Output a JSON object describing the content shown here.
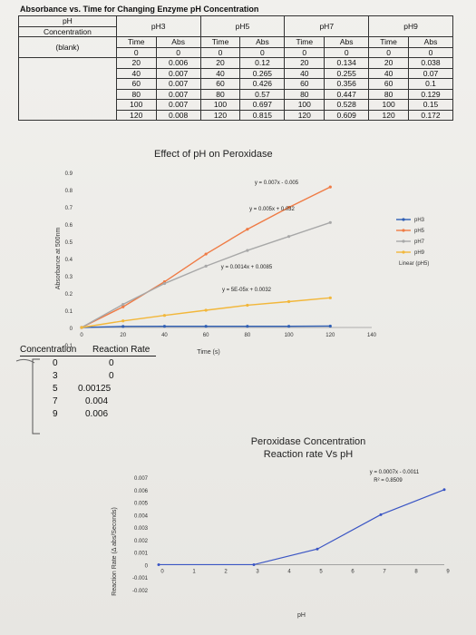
{
  "table": {
    "title": "Absorbance vs. Time for Changing Enzyme pH Concentration",
    "ph_label": "pH",
    "concentration_label": "Concentration",
    "blank_label": "(blank)",
    "groups": [
      {
        "name": "pH3",
        "time_label": "Time",
        "abs_label": "Abs",
        "rows": [
          [
            "0",
            "0"
          ],
          [
            "20",
            "0.006"
          ],
          [
            "40",
            "0.007"
          ],
          [
            "60",
            "0.007"
          ],
          [
            "80",
            "0.007"
          ],
          [
            "100",
            "0.007"
          ],
          [
            "120",
            "0.008"
          ]
        ]
      },
      {
        "name": "pH5",
        "time_label": "Time",
        "abs_label": "Abs",
        "rows": [
          [
            "0",
            "0"
          ],
          [
            "20",
            "0.12"
          ],
          [
            "40",
            "0.265"
          ],
          [
            "60",
            "0.426"
          ],
          [
            "80",
            "0.57"
          ],
          [
            "100",
            "0.697"
          ],
          [
            "120",
            "0.815"
          ]
        ]
      },
      {
        "name": "pH7",
        "time_label": "Time",
        "abs_label": "Abs",
        "rows": [
          [
            "0",
            "0"
          ],
          [
            "20",
            "0.134"
          ],
          [
            "40",
            "0.255"
          ],
          [
            "60",
            "0.356"
          ],
          [
            "80",
            "0.447"
          ],
          [
            "100",
            "0.528"
          ],
          [
            "120",
            "0.609"
          ]
        ]
      },
      {
        "name": "pH9",
        "time_label": "Time",
        "abs_label": "Abs",
        "rows": [
          [
            "0",
            "0"
          ],
          [
            "20",
            "0.038"
          ],
          [
            "40",
            "0.07"
          ],
          [
            "60",
            "0.1"
          ],
          [
            "80",
            "0.129"
          ],
          [
            "100",
            "0.15"
          ],
          [
            "120",
            "0.172"
          ]
        ]
      }
    ]
  },
  "chart_data": [
    {
      "type": "line",
      "title": "Effect of pH on Peroxidase",
      "xlabel": "Time (s)",
      "ylabel": "Absorbance at 500nm",
      "xlim": [
        0,
        140
      ],
      "ylim": [
        -0.1,
        0.9
      ],
      "x_ticks": [
        "0",
        "20",
        "40",
        "60",
        "80",
        "100",
        "120",
        "140"
      ],
      "y_ticks": [
        "-0.1",
        "0",
        "0.1",
        "0.2",
        "0.3",
        "0.4",
        "0.5",
        "0.6",
        "0.7",
        "0.8",
        "0.9"
      ],
      "series": [
        {
          "name": "pH3",
          "color": "#2f5fb5",
          "x": [
            0,
            20,
            40,
            60,
            80,
            100,
            120
          ],
          "y": [
            0,
            0.006,
            0.007,
            0.007,
            0.007,
            0.007,
            0.008
          ]
        },
        {
          "name": "pH5",
          "color": "#ef7b45",
          "x": [
            0,
            20,
            40,
            60,
            80,
            100,
            120
          ],
          "y": [
            0,
            0.12,
            0.265,
            0.426,
            0.57,
            0.697,
            0.815
          ]
        },
        {
          "name": "pH7",
          "color": "#a8a8a8",
          "x": [
            0,
            20,
            40,
            60,
            80,
            100,
            120
          ],
          "y": [
            0,
            0.134,
            0.255,
            0.356,
            0.447,
            0.528,
            0.609
          ]
        },
        {
          "name": "pH9",
          "color": "#f2b73a",
          "x": [
            0,
            20,
            40,
            60,
            80,
            100,
            120
          ],
          "y": [
            0,
            0.038,
            0.07,
            0.1,
            0.129,
            0.15,
            0.172
          ]
        }
      ],
      "trendline_legend": "Linear (pH5)",
      "equations": [
        {
          "text": "y = 0.007x - 0.005",
          "near": "pH5"
        },
        {
          "text": "y = 0.005x + 0.032",
          "near": "pH7"
        },
        {
          "text": "y = 0.0014x + 0.0085",
          "near": "pH9"
        },
        {
          "text": "y = 5E-05x + 0.0032",
          "near": "pH3"
        }
      ]
    },
    {
      "type": "line",
      "title": "Peroxidase Concentration Reaction rate Vs pH",
      "xlabel": "pH",
      "ylabel": "Reaction Rate (Δ abs/Seconds)",
      "xlim": [
        0,
        9
      ],
      "ylim": [
        -0.002,
        0.007
      ],
      "x_ticks": [
        "0",
        "1",
        "2",
        "3",
        "4",
        "5",
        "6",
        "7",
        "8",
        "9"
      ],
      "y_ticks": [
        "-0.002",
        "-0.001",
        "0",
        "0.001",
        "0.002",
        "0.003",
        "0.004",
        "0.005",
        "0.006",
        "0.007"
      ],
      "series": [
        {
          "name": "",
          "color": "#3a55c4",
          "x": [
            0,
            3,
            5,
            7,
            9
          ],
          "y": [
            0,
            0,
            0.00125,
            0.004,
            0.006
          ]
        }
      ],
      "equation": "y = 0.0007x - 0.0011",
      "r_squared": "R² = 0.8509"
    }
  ],
  "concentration": {
    "col1": "Concentration",
    "col2": "Reaction Rate",
    "rows": [
      [
        "0",
        "0"
      ],
      [
        "3",
        "0"
      ],
      [
        "5",
        "0.00125"
      ],
      [
        "7",
        "0.004"
      ],
      [
        "9",
        "0.006"
      ]
    ]
  }
}
